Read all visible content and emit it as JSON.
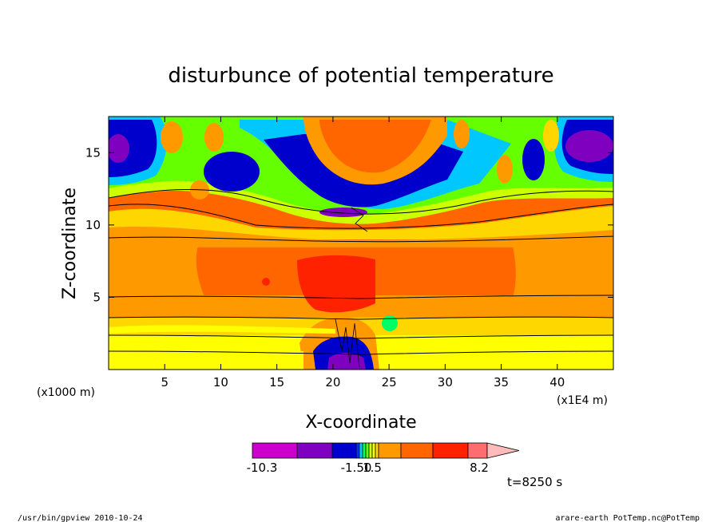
{
  "chart_data": {
    "type": "heatmap",
    "title": "disturbunce of potential temperature",
    "xlabel": "X-coordinate",
    "ylabel": "Z-coordinate",
    "x_unit": "(x1E4 m)",
    "y_unit": "(x1000 m)",
    "xlim": [
      0,
      45
    ],
    "ylim": [
      0,
      17.5
    ],
    "x_ticks": [
      5,
      10,
      15,
      20,
      25,
      30,
      35,
      40
    ],
    "y_ticks": [
      5,
      10,
      15
    ],
    "colorbar": {
      "tick_labels": [
        "-10.3",
        "-1.50",
        "1.5",
        "8.2"
      ],
      "colors": [
        "#cc00cc",
        "#7f00bf",
        "#0000cc",
        "#0033ff",
        "#00c8ff",
        "#00ff66",
        "#66ff00",
        "#ccff00",
        "#ffff00",
        "#ffd700",
        "#ff9900",
        "#ff6600",
        "#ff2200",
        "#ff6e6e",
        "#ffbbbb"
      ]
    },
    "annotation": "t=8250 s"
  },
  "footer": {
    "left": "/usr/bin/gpview   2010-10-24",
    "right": "arare-earth_PotTemp.nc@PotTemp"
  }
}
